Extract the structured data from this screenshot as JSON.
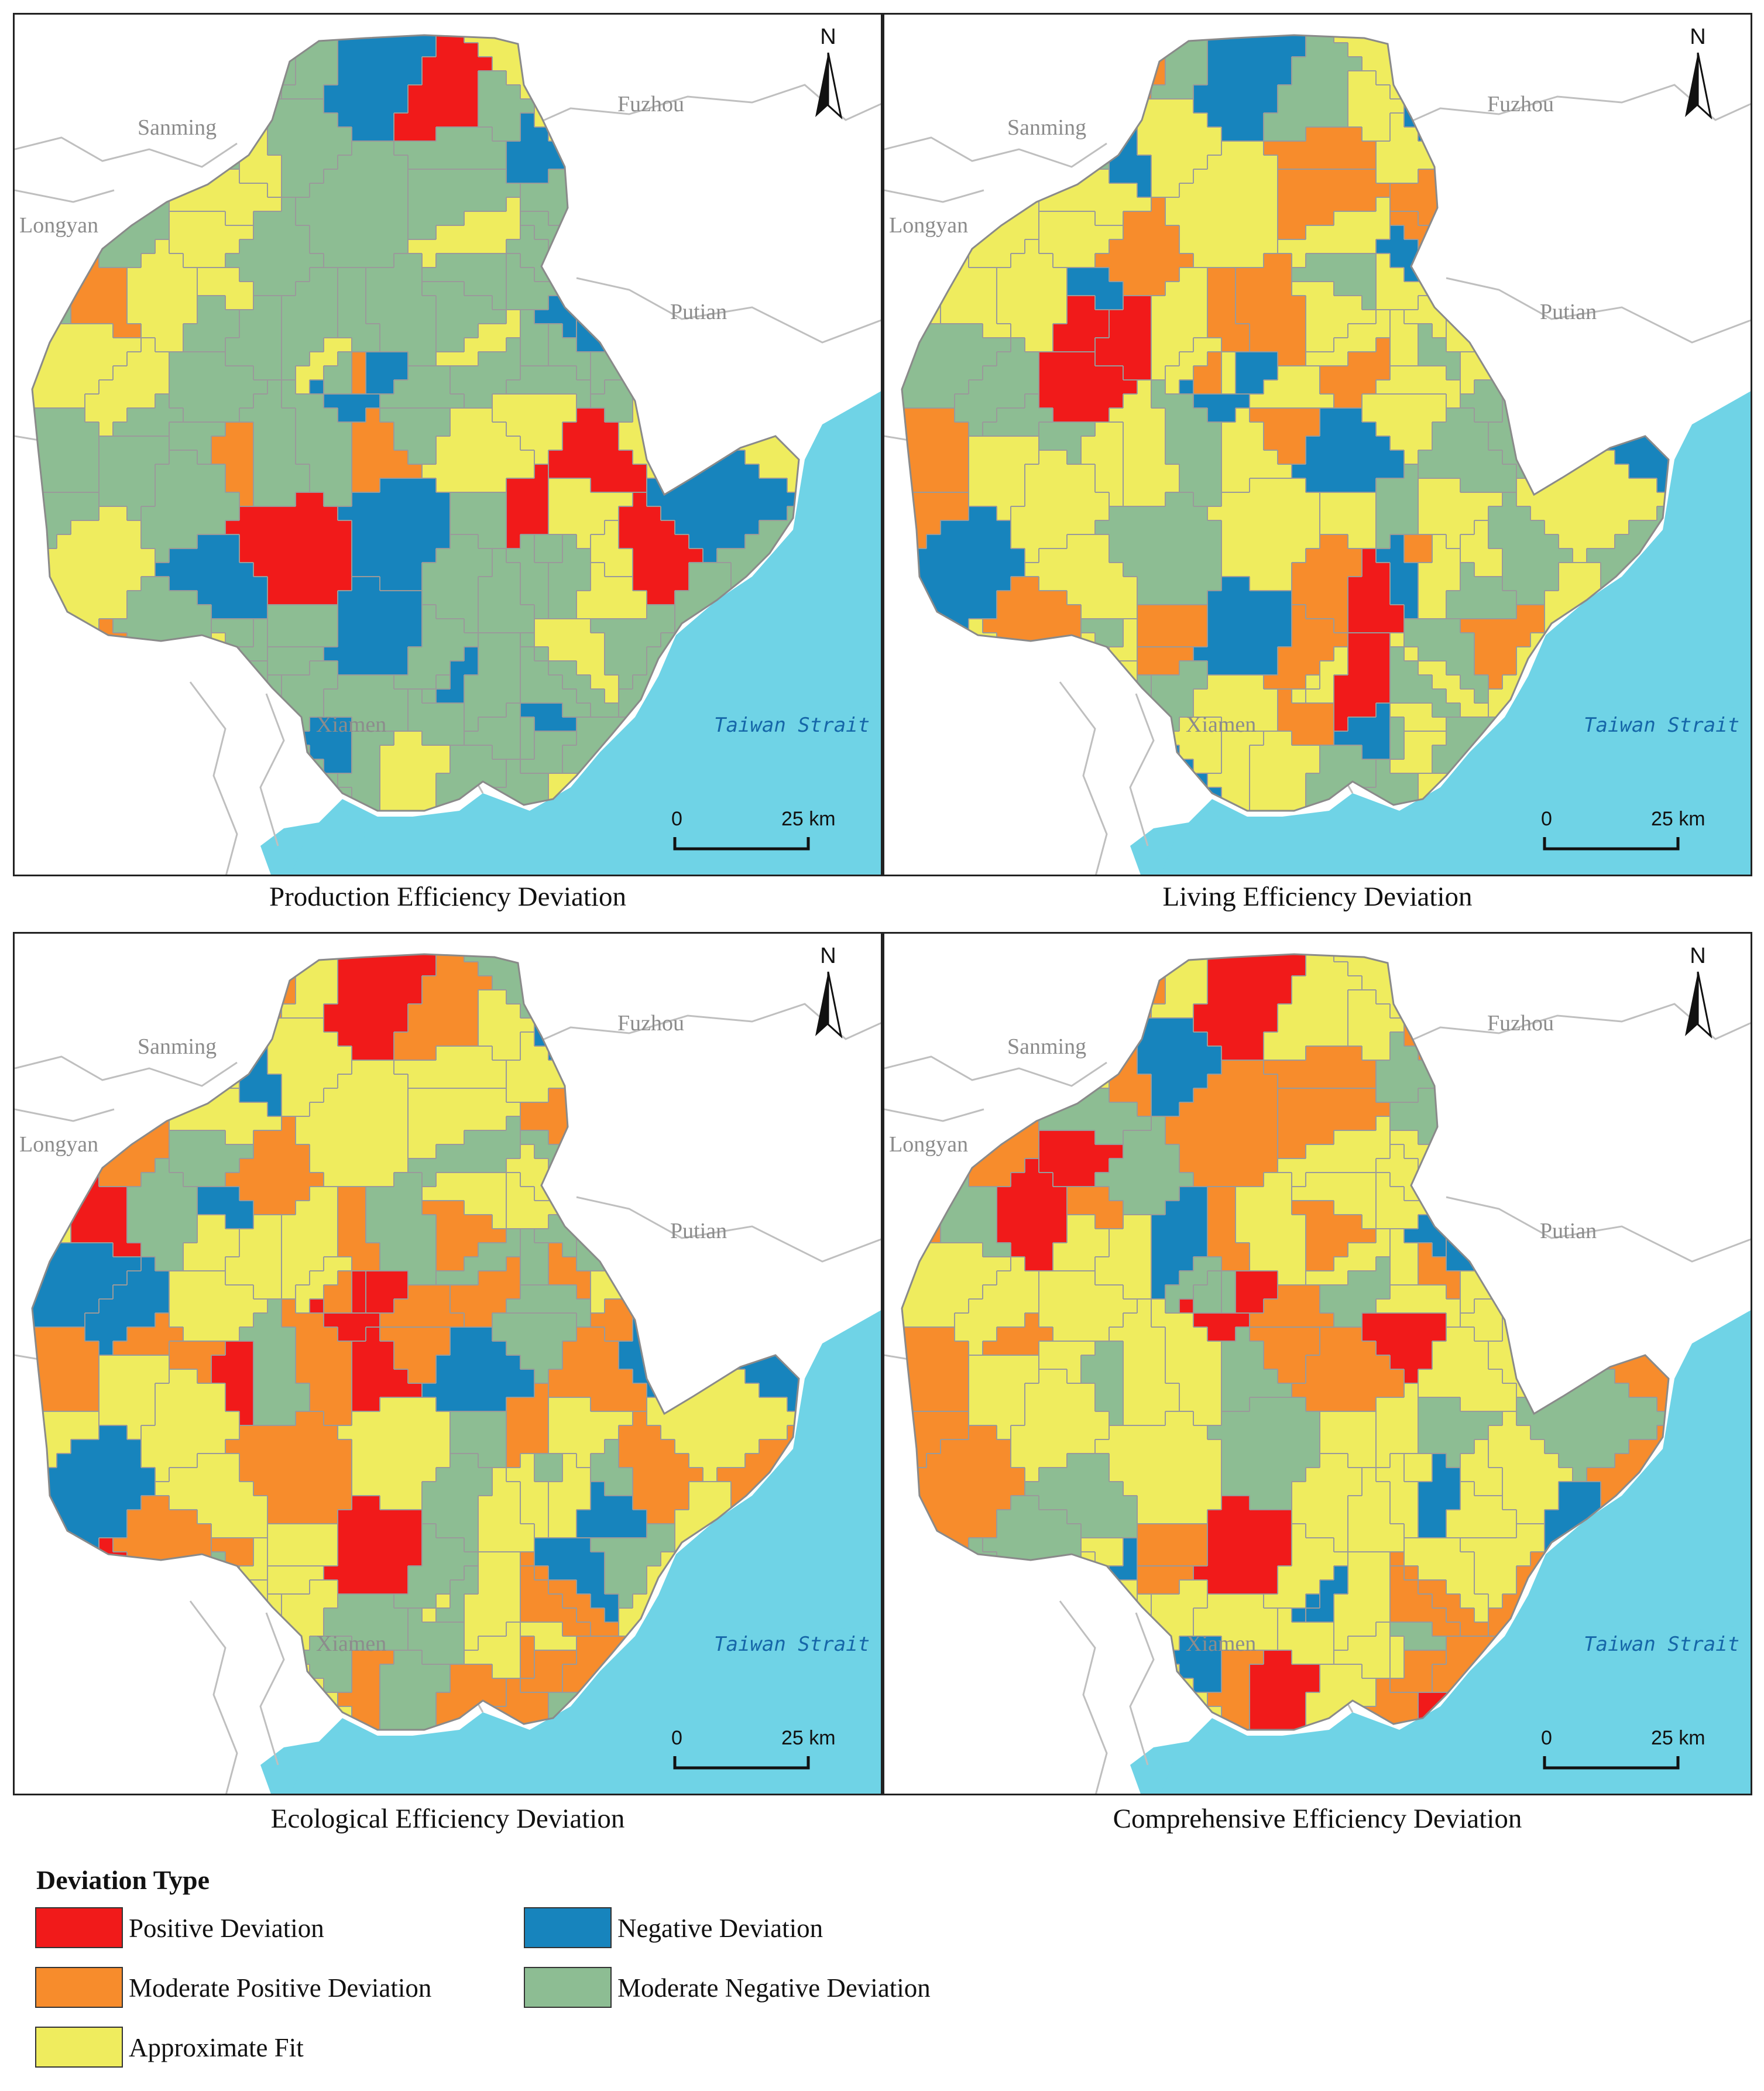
{
  "panels": [
    {
      "title": "Production Efficiency Deviation",
      "variant": 0
    },
    {
      "title": "Living Efficiency Deviation",
      "variant": 1
    },
    {
      "title": "Ecological Efficiency Deviation",
      "variant": 2
    },
    {
      "title": "Comprehensive Efficiency Deviation",
      "variant": 3
    }
  ],
  "place_labels": {
    "sanming": "Sanming",
    "fuzhou": "Fuzhou",
    "longyan": "Longyan",
    "putian": "Putian",
    "xiamen": "Xiamen",
    "sea": "Taiwan Strait"
  },
  "north_label": "N",
  "scale_bar": {
    "start": "0",
    "end": "25 km"
  },
  "legend": {
    "title": "Deviation Type",
    "items": [
      {
        "label": "Positive Deviation",
        "color": "#f11a1a"
      },
      {
        "label": "Negative Deviation",
        "color": "#1784bd"
      },
      {
        "label": "Moderate Positive Deviation",
        "color": "#f78c2c"
      },
      {
        "label": "Moderate Negative Deviation",
        "color": "#8dbd93"
      },
      {
        "label": "Approximate Fit",
        "color": "#efec5e"
      }
    ]
  },
  "colors": {
    "sea": "#6fd3e6",
    "background_line": "#bfbfbf",
    "district_border": "#9a9a9a"
  }
}
